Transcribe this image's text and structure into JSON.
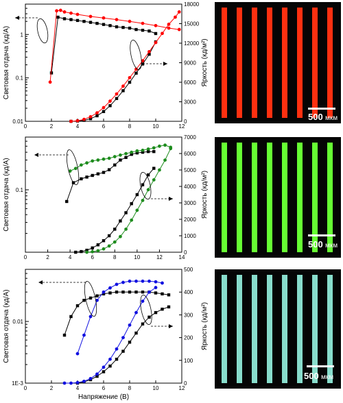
{
  "chart_data": [
    {
      "type": "line",
      "panel": "red",
      "xlim": [
        0,
        12
      ],
      "xticks": [
        "0",
        "2",
        "4",
        "6",
        "8",
        "10",
        "12"
      ],
      "ylim_left": [
        0.01,
        5
      ],
      "ylog_left": true,
      "yticks_left": [
        "0.01",
        "0.1",
        "1"
      ],
      "ylim_right": [
        0,
        18000
      ],
      "yticks_right": [
        "0",
        "3000",
        "6000",
        "9000",
        "12000",
        "15000",
        "18000"
      ],
      "ylabel_left": "Световая отдача (кд/А)",
      "ylabel_right": "Яркость (кд/м²)",
      "xlabel": "",
      "grid": false,
      "series": [
        {
          "color": "#000000",
          "marker": "square",
          "axis": "left",
          "x": [
            2.0,
            2.5,
            3.0,
            3.5,
            4.0,
            4.5,
            5.0,
            5.5,
            6.0,
            6.5,
            7.0,
            7.5,
            8.0,
            8.5,
            9.0,
            9.5,
            10.0
          ],
          "values": [
            0.13,
            2.5,
            2.3,
            2.2,
            2.1,
            2.0,
            1.9,
            1.8,
            1.7,
            1.6,
            1.5,
            1.45,
            1.4,
            1.3,
            1.25,
            1.2,
            1.05
          ]
        },
        {
          "color": "#000000",
          "marker": "square",
          "axis": "right",
          "x": [
            3.5,
            4.0,
            4.5,
            5.0,
            5.5,
            6.0,
            6.5,
            7.0,
            7.5,
            8.0,
            8.5,
            9.0,
            9.5,
            10.0
          ],
          "values": [
            0,
            40,
            150,
            400,
            850,
            1500,
            2400,
            3500,
            4700,
            6000,
            7400,
            8800,
            10300,
            12200
          ]
        },
        {
          "color": "#ff0000",
          "marker": "circle",
          "axis": "left",
          "x": [
            1.9,
            2.4,
            2.7,
            3.0,
            3.5,
            4.0,
            5.0,
            6.0,
            7.0,
            8.0,
            9.0,
            10.0,
            11.0,
            11.8
          ],
          "values": [
            0.08,
            3.5,
            3.6,
            3.3,
            3.1,
            2.9,
            2.6,
            2.4,
            2.2,
            2.0,
            1.8,
            1.6,
            1.4,
            1.3
          ]
        },
        {
          "color": "#ff0000",
          "marker": "circle",
          "axis": "right",
          "x": [
            3.5,
            4.0,
            4.5,
            5.0,
            5.5,
            6.0,
            6.5,
            7.0,
            7.5,
            8.0,
            8.5,
            9.0,
            9.5,
            10.0,
            10.5,
            11.0,
            11.5,
            11.8
          ],
          "values": [
            0,
            80,
            300,
            700,
            1300,
            2100,
            3100,
            4200,
            5400,
            6700,
            8000,
            9300,
            10700,
            12100,
            13500,
            14900,
            16000,
            16800
          ]
        }
      ]
    },
    {
      "type": "line",
      "panel": "green",
      "xlim": [
        0,
        14
      ],
      "xticks": [
        "0",
        "2",
        "4",
        "6",
        "8",
        "10",
        "12",
        "14"
      ],
      "ylim_left": [
        0.01,
        0.7
      ],
      "ylog_left": true,
      "yticks_left": [
        "0.1"
      ],
      "ylim_right": [
        0,
        7000
      ],
      "yticks_right": [
        "0",
        "1000",
        "2000",
        "3000",
        "4000",
        "5000",
        "6000",
        "7000"
      ],
      "ylabel_left": "Световая отдача (кд/А)",
      "ylabel_right": "Яркость (кд/м²)",
      "xlabel": "",
      "grid": false,
      "series": [
        {
          "color": "#000000",
          "marker": "square",
          "axis": "left",
          "x": [
            3.7,
            4.3,
            5.0,
            5.5,
            6.0,
            6.5,
            7.0,
            7.5,
            8.0,
            8.5,
            9.0,
            9.5,
            10.0,
            10.5,
            11.0,
            11.5
          ],
          "values": [
            0.065,
            0.13,
            0.15,
            0.16,
            0.17,
            0.18,
            0.19,
            0.21,
            0.25,
            0.3,
            0.33,
            0.37,
            0.39,
            0.4,
            0.41,
            0.41
          ]
        },
        {
          "color": "#000000",
          "marker": "square",
          "axis": "right",
          "x": [
            4.5,
            5.0,
            5.5,
            6.0,
            6.5,
            7.0,
            7.5,
            8.0,
            8.5,
            9.0,
            9.5,
            10.0,
            10.5,
            11.0,
            11.5
          ],
          "values": [
            0,
            40,
            120,
            260,
            450,
            700,
            1000,
            1400,
            1900,
            2400,
            2950,
            3500,
            4100,
            4700,
            5100
          ]
        },
        {
          "color": "#1e8c1e",
          "marker": "circle",
          "axis": "left",
          "x": [
            4.0,
            4.5,
            5.0,
            5.5,
            6.0,
            6.5,
            7.0,
            7.5,
            8.0,
            8.5,
            9.0,
            9.5,
            10.0,
            10.5,
            11.0,
            11.5,
            12.0,
            12.5,
            13.0
          ],
          "values": [
            0.2,
            0.22,
            0.25,
            0.27,
            0.29,
            0.3,
            0.31,
            0.32,
            0.34,
            0.36,
            0.38,
            0.4,
            0.42,
            0.43,
            0.45,
            0.47,
            0.5,
            0.52,
            0.48
          ]
        },
        {
          "color": "#1e8c1e",
          "marker": "circle",
          "axis": "right",
          "x": [
            5.5,
            6.0,
            6.5,
            7.0,
            7.5,
            8.0,
            8.5,
            9.0,
            9.5,
            10.0,
            10.5,
            11.0,
            11.5,
            12.0,
            12.5,
            13.0
          ],
          "values": [
            0,
            30,
            90,
            200,
            380,
            620,
            950,
            1400,
            1950,
            2550,
            3150,
            3800,
            4400,
            5000,
            5600,
            6300
          ]
        }
      ]
    },
    {
      "type": "line",
      "panel": "blue",
      "xlim": [
        0,
        12
      ],
      "xticks": [
        "0",
        "2",
        "4",
        "6",
        "8",
        "10",
        "12"
      ],
      "ylim_left": [
        0.001,
        0.07
      ],
      "ylog_left": true,
      "yticks_left": [
        "1E-3",
        "0.01"
      ],
      "ylim_right": [
        0,
        500
      ],
      "yticks_right": [
        "0",
        "100",
        "200",
        "300",
        "400",
        "500"
      ],
      "ylabel_left": "Световая отдача (кд/А)",
      "ylabel_right": "Яркость (кд/м²)",
      "xlabel": "Напряжение (В)",
      "grid": false,
      "series": [
        {
          "color": "#000000",
          "marker": "square",
          "axis": "left",
          "x": [
            3.0,
            3.5,
            4.0,
            4.5,
            5.0,
            5.5,
            6.0,
            6.5,
            7.0,
            7.5,
            8.0,
            8.5,
            9.0,
            9.5,
            10.0,
            10.5,
            11.0
          ],
          "values": [
            0.006,
            0.012,
            0.018,
            0.022,
            0.024,
            0.026,
            0.028,
            0.029,
            0.03,
            0.03,
            0.03,
            0.03,
            0.03,
            0.03,
            0.029,
            0.028,
            0.027
          ]
        },
        {
          "color": "#000000",
          "marker": "square",
          "axis": "right",
          "x": [
            4.0,
            4.5,
            5.0,
            5.5,
            6.0,
            6.5,
            7.0,
            7.5,
            8.0,
            8.5,
            9.0,
            9.5,
            10.0,
            10.5,
            11.0
          ],
          "values": [
            0,
            5,
            15,
            30,
            50,
            75,
            105,
            140,
            180,
            220,
            260,
            290,
            310,
            325,
            335
          ]
        },
        {
          "color": "#1010e0",
          "marker": "circle",
          "axis": "left",
          "x": [
            4.0,
            4.5,
            5.0,
            5.5,
            6.0,
            6.5,
            7.0,
            7.5,
            8.0,
            8.5,
            9.0,
            9.5,
            10.0,
            10.5
          ],
          "values": [
            0.003,
            0.006,
            0.012,
            0.022,
            0.03,
            0.035,
            0.04,
            0.043,
            0.045,
            0.045,
            0.045,
            0.045,
            0.044,
            0.042
          ]
        },
        {
          "color": "#1010e0",
          "marker": "circle",
          "axis": "right",
          "x": [
            3.0,
            3.5,
            4.0,
            4.5,
            5.0,
            5.5,
            6.0,
            6.5,
            7.0,
            7.5,
            8.0,
            8.5,
            9.0,
            9.5,
            10.0
          ],
          "values": [
            0,
            0,
            2,
            8,
            20,
            40,
            70,
            105,
            150,
            200,
            255,
            310,
            360,
            400,
            420
          ]
        }
      ]
    }
  ],
  "photos": [
    {
      "bar_color": "#ff3010",
      "scale_number": "500",
      "scale_unit": "мкм"
    },
    {
      "bar_color": "#66ff33",
      "scale_number": "500",
      "scale_unit": "мкм"
    },
    {
      "bar_color": "#88ddcc",
      "scale_number": "500",
      "scale_unit": "мкм"
    }
  ]
}
